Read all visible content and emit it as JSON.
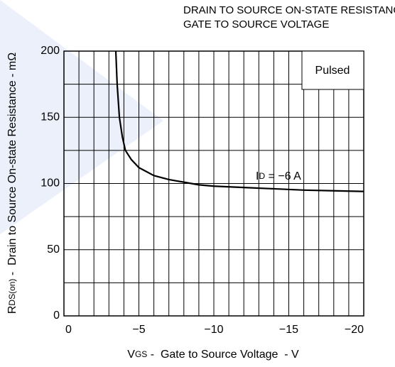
{
  "chart_data": {
    "type": "line",
    "title": [
      "DRAIN TO SOURCE ON-STATE RESISTANCE vs.",
      "GATE TO SOURCE VOLTAGE"
    ],
    "x_label": {
      "symbol": "V",
      "subscript": "GS",
      "text": " -  Gate to Source Voltage  - V"
    },
    "y_label": {
      "symbol": "R",
      "subscript": "DS(on)",
      "text": " -  Drain to Source On-state Resistance - mΩ"
    },
    "annotations": {
      "box": "Pulsed",
      "curve": {
        "symbol": "I",
        "subscript": "D",
        "text": " = −6 A"
      }
    },
    "x": [
      -3.46,
      -3.55,
      -3.7,
      -3.9,
      -4.1,
      -4.5,
      -5,
      -6,
      -7,
      -8,
      -9,
      -10,
      -12,
      -14,
      -16,
      -18,
      -20
    ],
    "series": [
      {
        "name": "ID = −6 A",
        "color": "#000000",
        "values": [
          200,
          175,
          150,
          135,
          125,
          118,
          112,
          106,
          103,
          101,
          99,
          98,
          97,
          96,
          95,
          94.5,
          94
        ]
      }
    ],
    "xlim": [
      0,
      -20
    ],
    "ylim": [
      0,
      200
    ],
    "xticks": [
      0,
      {
        "value": -5,
        "label": "−5"
      },
      {
        "value": -10,
        "label": "−10"
      },
      {
        "value": -15,
        "label": "−15"
      },
      {
        "value": -20,
        "label": "−20"
      }
    ],
    "yticks": [
      0,
      50,
      100,
      150,
      200
    ],
    "xgrid": [
      -1,
      -2,
      -3,
      -4,
      -5,
      -6,
      -7,
      -8,
      -9,
      -10,
      -11,
      -12,
      -13,
      -14,
      -15,
      -16,
      -17,
      -18,
      -19
    ],
    "ygrid": [
      25,
      50,
      75,
      100,
      125,
      150,
      175
    ],
    "grid": true
  }
}
